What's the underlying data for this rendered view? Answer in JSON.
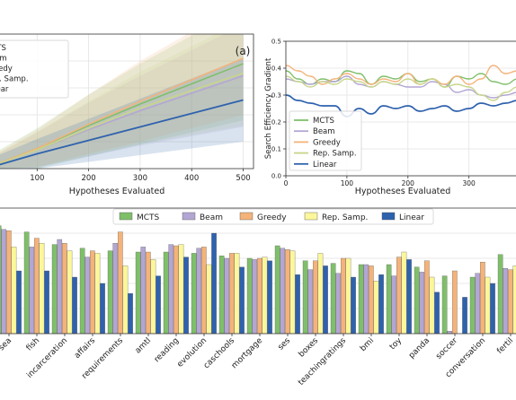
{
  "chart_data": [
    {
      "type": "line",
      "panel_label": "(a)",
      "xlabel": "Hypotheses Evaluated",
      "ylabel": "",
      "xlim": [
        0,
        520
      ],
      "ylim": [
        0,
        1.0
      ],
      "xticks": [
        100,
        200,
        300,
        400,
        500
      ],
      "grid": true,
      "legend": "upper-left",
      "x": [
        0,
        100,
        200,
        300,
        400,
        500
      ],
      "series": [
        {
          "name": "MCTS",
          "color": "#7fbf6a",
          "values": [
            0.0,
            0.15,
            0.32,
            0.48,
            0.63,
            0.78
          ],
          "band": [
            0.08,
            0.15,
            0.23,
            0.3,
            0.36,
            0.42
          ]
        },
        {
          "name": "Beam",
          "color": "#b3a6d3",
          "values": [
            0.0,
            0.14,
            0.29,
            0.43,
            0.56,
            0.69
          ],
          "band": [
            0.06,
            0.13,
            0.2,
            0.26,
            0.32,
            0.38
          ]
        },
        {
          "name": "Greedy",
          "color": "#f4b37a",
          "values": [
            0.0,
            0.15,
            0.33,
            0.5,
            0.66,
            0.82
          ],
          "band": [
            0.07,
            0.14,
            0.22,
            0.3,
            0.36,
            0.42
          ]
        },
        {
          "name": "Rep. Samp.",
          "color": "#c7d68a",
          "values": [
            0.0,
            0.14,
            0.3,
            0.45,
            0.58,
            0.71
          ],
          "band": [
            0.06,
            0.13,
            0.2,
            0.27,
            0.33,
            0.39
          ]
        },
        {
          "name": "Linear",
          "color": "#2f62ad",
          "values": [
            0.0,
            0.11,
            0.21,
            0.31,
            0.41,
            0.51
          ],
          "band": [
            0.06,
            0.11,
            0.16,
            0.21,
            0.26,
            0.31
          ]
        }
      ]
    },
    {
      "type": "line",
      "xlabel": "Hypotheses Evaluated",
      "ylabel": "Search Efficiency Gradient",
      "xlim": [
        0,
        380
      ],
      "ylim": [
        0,
        0.5
      ],
      "xticks": [
        0,
        100,
        200,
        300
      ],
      "yticks": [
        0.0,
        0.1,
        0.2,
        0.3,
        0.4,
        0.5
      ],
      "grid": true,
      "legend": "lower-left",
      "x": [
        0,
        20,
        40,
        60,
        80,
        100,
        120,
        140,
        160,
        180,
        200,
        220,
        240,
        260,
        280,
        300,
        320,
        340,
        360,
        380
      ],
      "series": [
        {
          "name": "MCTS",
          "color": "#7fbf6a",
          "values": [
            0.39,
            0.36,
            0.34,
            0.36,
            0.35,
            0.39,
            0.38,
            0.34,
            0.37,
            0.36,
            0.38,
            0.35,
            0.36,
            0.33,
            0.37,
            0.36,
            0.38,
            0.35,
            0.34,
            0.36
          ]
        },
        {
          "name": "Beam",
          "color": "#b3a6d3",
          "values": [
            0.36,
            0.35,
            0.34,
            0.35,
            0.35,
            0.37,
            0.34,
            0.33,
            0.35,
            0.34,
            0.33,
            0.33,
            0.35,
            0.34,
            0.31,
            0.32,
            0.3,
            0.29,
            0.3,
            0.31
          ]
        },
        {
          "name": "Greedy",
          "color": "#f4b37a",
          "values": [
            0.41,
            0.39,
            0.37,
            0.34,
            0.36,
            0.38,
            0.36,
            0.34,
            0.36,
            0.35,
            0.38,
            0.34,
            0.36,
            0.34,
            0.37,
            0.34,
            0.36,
            0.41,
            0.38,
            0.39
          ]
        },
        {
          "name": "Rep. Samp.",
          "color": "#c7d68a",
          "values": [
            0.37,
            0.35,
            0.33,
            0.35,
            0.34,
            0.36,
            0.35,
            0.33,
            0.35,
            0.34,
            0.36,
            0.34,
            0.36,
            0.33,
            0.34,
            0.33,
            0.3,
            0.28,
            0.31,
            0.33
          ]
        },
        {
          "name": "Linear",
          "color": "#2f62ad",
          "values": [
            0.3,
            0.28,
            0.27,
            0.26,
            0.26,
            0.22,
            0.25,
            0.23,
            0.26,
            0.25,
            0.26,
            0.24,
            0.25,
            0.26,
            0.24,
            0.25,
            0.27,
            0.26,
            0.27,
            0.28
          ]
        }
      ]
    },
    {
      "type": "bar",
      "xlabel": "",
      "ylabel": "",
      "ylim": [
        0,
        1.0
      ],
      "grid": true,
      "legend": "top-center",
      "categories": [
        "sea",
        "fish",
        "incarceration",
        "affairs",
        "requirements",
        "amtl",
        "reading",
        "evolution",
        "caschools",
        "mortgage",
        "ses",
        "boxes",
        "teachingratings",
        "bmi",
        "toy",
        "panda",
        "soccer",
        "conversation",
        "fertil"
      ],
      "series": [
        {
          "name": "MCTS",
          "color": "#7fbf6a",
          "values": [
            0.86,
            0.81,
            0.71,
            0.68,
            0.66,
            0.65,
            0.65,
            0.64,
            0.62,
            0.6,
            0.7,
            0.58,
            0.56,
            0.55,
            0.55,
            0.53,
            0.46,
            0.45,
            0.63
          ]
        },
        {
          "name": "Beam",
          "color": "#b3a6d3",
          "values": [
            0.83,
            0.69,
            0.75,
            0.61,
            0.72,
            0.69,
            0.71,
            0.68,
            0.6,
            0.59,
            0.68,
            0.51,
            0.48,
            0.55,
            0.46,
            0.49,
            0.02,
            0.48,
            0.52
          ]
        },
        {
          "name": "Greedy",
          "color": "#f4b37a",
          "values": [
            0.82,
            0.76,
            0.72,
            0.66,
            0.81,
            0.65,
            0.7,
            0.69,
            0.64,
            0.6,
            0.67,
            0.58,
            0.6,
            0.54,
            0.61,
            0.58,
            0.5,
            0.57,
            0.51
          ]
        },
        {
          "name": "Rep. Samp.",
          "color": "#fbf79a",
          "values": [
            0.69,
            0.72,
            0.66,
            0.64,
            0.54,
            0.59,
            0.71,
            0.55,
            0.64,
            0.61,
            0.66,
            0.64,
            0.6,
            0.42,
            0.65,
            0.45,
            0.0,
            0.45,
            0.54
          ]
        },
        {
          "name": "Linear",
          "color": "#2f62ad",
          "values": [
            0.5,
            0.5,
            0.45,
            0.4,
            0.32,
            0.46,
            0.61,
            0.8,
            0.53,
            0.58,
            0.47,
            0.54,
            0.45,
            0.47,
            0.59,
            0.33,
            0.29,
            0.4,
            0.41
          ]
        }
      ]
    }
  ]
}
